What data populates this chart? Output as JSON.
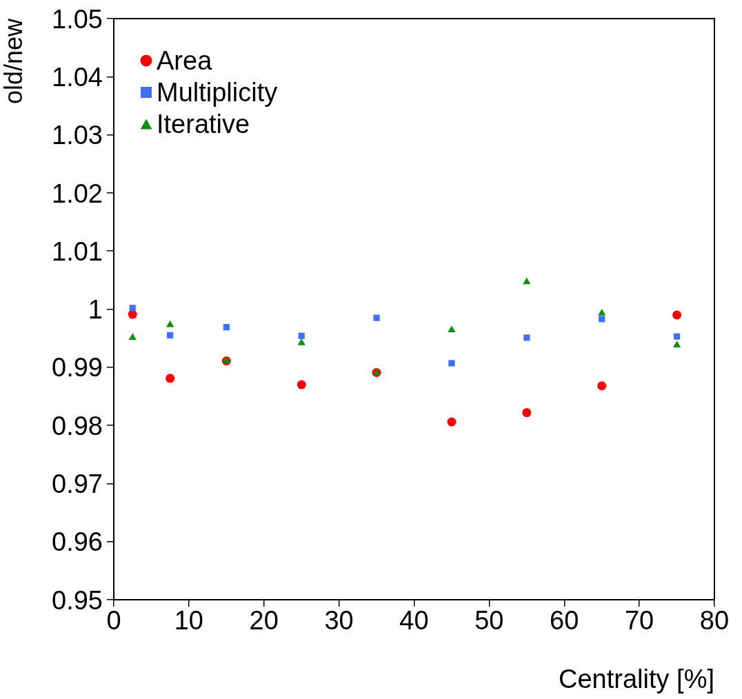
{
  "chart_data": {
    "type": "scatter",
    "xlabel": "Centrality [%]",
    "ylabel": "old/new",
    "x": [
      2.5,
      7.5,
      15,
      25,
      35,
      45,
      55,
      65,
      75
    ],
    "series": [
      {
        "name": "Area",
        "color": "#ff0000",
        "marker": "circle",
        "values": [
          0.9991,
          0.9881,
          0.9911,
          0.987,
          0.9891,
          0.9806,
          0.9822,
          0.9868,
          0.999
        ]
      },
      {
        "name": "Multiplicity",
        "color": "#3d70f2",
        "marker": "square",
        "values": [
          1.0002,
          0.9955,
          0.9969,
          0.9954,
          0.9985,
          0.9907,
          0.9951,
          0.9983,
          0.9953
        ]
      },
      {
        "name": "Iterative",
        "color": "#109010",
        "marker": "triangle",
        "values": [
          0.9951,
          0.9973,
          0.9911,
          0.9942,
          0.989,
          0.9964,
          1.0047,
          0.9993,
          0.9938
        ]
      }
    ],
    "xlim": [
      0,
      80
    ],
    "xticks": [
      0,
      10,
      20,
      30,
      40,
      50,
      60,
      70,
      80
    ],
    "ylim": [
      0.95,
      1.05
    ],
    "yticks": [
      0.95,
      0.96,
      0.97,
      0.98,
      0.99,
      1,
      1.01,
      1.02,
      1.03,
      1.04,
      1.05
    ],
    "grid": false,
    "legend": "top left"
  }
}
